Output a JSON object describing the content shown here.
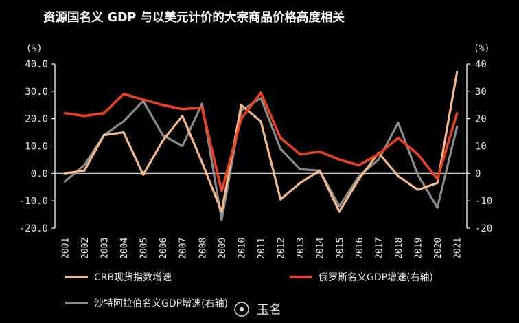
{
  "chart_data": {
    "type": "line",
    "title": "资源国名义 GDP 与以美元计价的大宗商品价格高度相关",
    "left_unit": "(%)",
    "right_unit": "(%)",
    "ylim": [
      -20,
      40
    ],
    "y2lim": [
      -20,
      40
    ],
    "left_ticks": [
      "40.0",
      "30.0",
      "20.0",
      "10.0",
      "0.0",
      "-10.0",
      "-20.0"
    ],
    "right_ticks": [
      "40",
      "30",
      "20",
      "10",
      "0",
      "-10",
      "-20"
    ],
    "tick_values": [
      40,
      30,
      20,
      10,
      0,
      -10,
      -20
    ],
    "categories": [
      "2001",
      "2002",
      "2003",
      "2004",
      "2005",
      "2006",
      "2007",
      "2008",
      "2009",
      "2010",
      "2011",
      "2012",
      "2013",
      "2014",
      "2015",
      "2016",
      "2017",
      "2018",
      "2019",
      "2020",
      "2021"
    ],
    "legend_position": "bottom",
    "series": [
      {
        "name": "CRB现货指数增速",
        "axis": "left",
        "color": "#f5b98a",
        "values": [
          0,
          1,
          14,
          15,
          -0.5,
          12,
          21,
          4,
          -14,
          25,
          19,
          -9.5,
          -3.5,
          1,
          -14,
          -2,
          7.5,
          -1,
          -6,
          -3.5,
          37
        ]
      },
      {
        "name": "俄罗斯名义GDP增速(右轴)",
        "axis": "right",
        "color": "#e8421e",
        "values": [
          22,
          21,
          22,
          29,
          27,
          25,
          23.5,
          24,
          -6.5,
          20,
          29.5,
          13,
          7,
          8,
          5,
          3,
          7,
          13,
          7,
          -2,
          22
        ]
      },
      {
        "name": "沙特阿拉伯名义GDP增速(右轴)",
        "axis": "right",
        "color": "#8a8a8a",
        "values": [
          -3,
          3,
          14,
          19,
          26.5,
          14,
          10,
          25.5,
          -17,
          23,
          27.5,
          9,
          1.5,
          1,
          -12,
          -1,
          5,
          18.5,
          -0.5,
          -12.5,
          17
        ]
      }
    ]
  },
  "watermark": {
    "text": "玉名"
  }
}
